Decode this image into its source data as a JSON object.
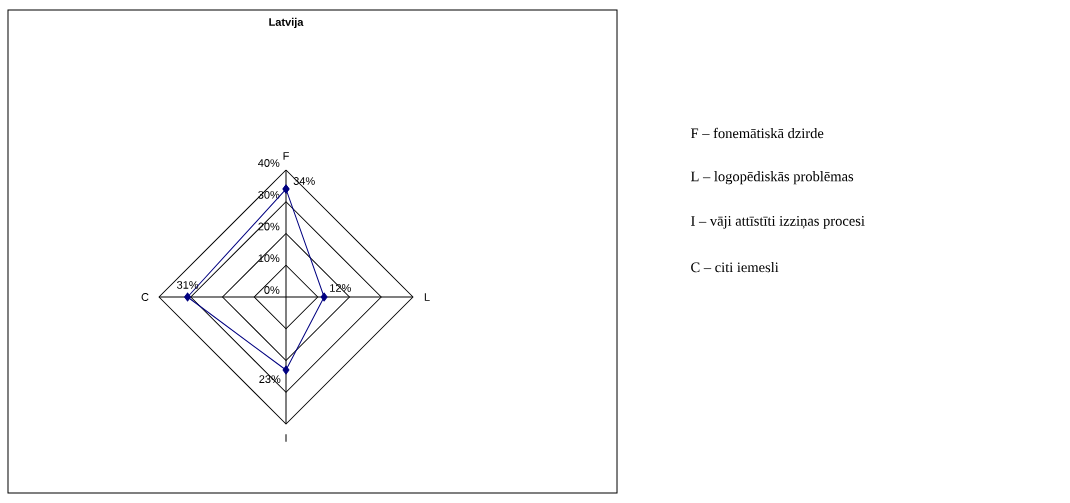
{
  "chart_data": {
    "type": "radar",
    "title": "Latvija",
    "categories": [
      "F",
      "L",
      "I",
      "C"
    ],
    "series": [
      {
        "color": "#000080",
        "values": [
          34,
          12,
          23,
          31
        ],
        "value_labels": [
          "34%",
          "12%",
          "23%",
          "31%"
        ]
      }
    ],
    "ylim": [
      0,
      40
    ],
    "yticks": [
      {
        "value": 0,
        "label": "0%"
      },
      {
        "value": 10,
        "label": "10%"
      },
      {
        "value": 20,
        "label": "20%"
      },
      {
        "value": 30,
        "label": "30%"
      },
      {
        "value": 40,
        "label": "40%"
      }
    ],
    "grid": true,
    "marker": "diamond",
    "annotations": [
      "F – fonemātiskā dzirde",
      "L – logopēdiskās problēmas",
      "I – vāji attīstīti izziņas procesi",
      "C – citi iemesli"
    ]
  }
}
